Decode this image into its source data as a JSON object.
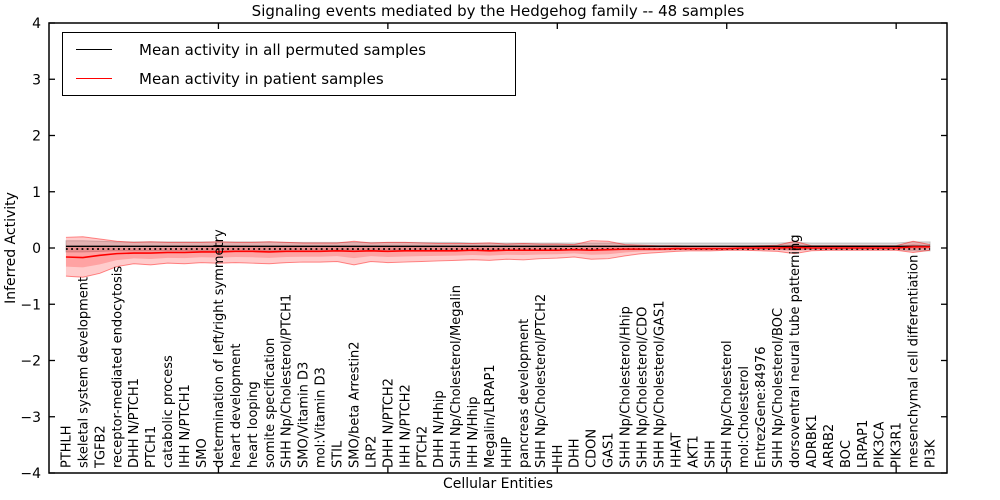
{
  "chart_data": {
    "type": "line",
    "title": "Signaling events mediated by the Hedgehog family -- 48 samples",
    "xlabel": "Cellular Entities",
    "ylabel": "Inferred Activity",
    "ylim": [
      -4,
      4
    ],
    "xlim": [
      0,
      53
    ],
    "ytick_values": [
      4,
      3,
      2,
      1,
      0,
      -1,
      -2,
      -3,
      -4
    ],
    "ytick_labels": [
      "4",
      "3",
      "2",
      "1",
      "0",
      "−1",
      "−2",
      "−3",
      "−4"
    ],
    "xtick_values": [
      10,
      20,
      30,
      40,
      50
    ],
    "grid": false,
    "legend_position": "upper left",
    "zero_line": {
      "style": "dotted",
      "color": "#000000",
      "y": 0
    },
    "categories": [
      "PTHLH",
      "skeletal system development",
      "TGFB2",
      "receptor-mediated endocytosis",
      "DHH N/PTCH1",
      "PTCH1",
      "catabolic process",
      "IHH N/PTCH1",
      "SMO",
      "determination of left/right symmetry",
      "heart development",
      "heart looping",
      "somite specification",
      "SHH Np/Cholesterol/PTCH1",
      "SMO/Vitamin D3",
      "mol:Vitamin D3",
      "STIL",
      "SMO/beta Arrestin2",
      "LRP2",
      "DHH N/PTCH2",
      "IHH N/PTCH2",
      "PTCH2",
      "DHH N/Hhip",
      "SHH Np/Cholesterol/Megalin",
      "IHH N/Hhip",
      "Megalin/LRPAP1",
      "HHIP",
      "pancreas development",
      "SHH Np/Cholesterol/PTCH2",
      "IHH",
      "DHH",
      "CDON",
      "GAS1",
      "SHH Np/Cholesterol/Hhip",
      "SHH Np/Cholesterol/CDO",
      "SHH Np/Cholesterol/GAS1",
      "HHAT",
      "AKT1",
      "SHH",
      "SHH Np/Cholesterol",
      "mol:Cholesterol",
      "EntrezGene:84976",
      "SHH Np/Cholesterol/BOC",
      "dorsoventral neural tube patterning",
      "ADRBK1",
      "ARRB2",
      "BOC",
      "LRPAP1",
      "PIK3CA",
      "PIK3R1",
      "mesenchymal cell differentiation",
      "PI3K"
    ],
    "series": [
      {
        "name": "Mean activity in all permuted samples",
        "color": "#000000",
        "values": [
          0.03,
          0.03,
          0.03,
          0.03,
          0.03,
          0.03,
          0.03,
          0.03,
          0.03,
          0.03,
          0.03,
          0.03,
          0.03,
          0.03,
          0.03,
          0.03,
          0.03,
          0.03,
          0.03,
          0.03,
          0.03,
          0.03,
          0.03,
          0.03,
          0.03,
          0.03,
          0.03,
          0.03,
          0.03,
          0.03,
          0.03,
          0.03,
          0.03,
          0.03,
          0.03,
          0.03,
          0.03,
          0.03,
          0.03,
          0.03,
          0.03,
          0.03,
          0.03,
          0.03,
          0.03,
          0.03,
          0.03,
          0.03,
          0.03,
          0.03,
          0.03,
          0.03
        ]
      },
      {
        "name": "Mean activity in patient samples",
        "color": "#ff0000",
        "values": [
          -0.16,
          -0.17,
          -0.13,
          -0.1,
          -0.09,
          -0.09,
          -0.08,
          -0.08,
          -0.07,
          -0.07,
          -0.06,
          -0.06,
          -0.07,
          -0.06,
          -0.06,
          -0.06,
          -0.05,
          -0.06,
          -0.05,
          -0.06,
          -0.05,
          -0.05,
          -0.05,
          -0.05,
          -0.04,
          -0.05,
          -0.04,
          -0.04,
          -0.04,
          -0.04,
          -0.03,
          -0.04,
          -0.03,
          -0.02,
          -0.02,
          -0.02,
          -0.01,
          -0.01,
          -0.01,
          -0.01,
          0,
          0,
          0,
          0.01,
          0,
          0,
          0,
          0,
          0,
          0,
          0.02,
          0.02
        ]
      }
    ],
    "bands": {
      "patient_band": {
        "color": "rgba(255,0,0,0.20)",
        "edge_color": "rgba(255,0,0,0.45)",
        "upper": [
          0.19,
          0.2,
          0.16,
          0.12,
          0.1,
          0.11,
          0.1,
          0.1,
          0.1,
          0.11,
          0.1,
          0.1,
          0.11,
          0.1,
          0.09,
          0.09,
          0.09,
          0.12,
          0.09,
          0.1,
          0.1,
          0.09,
          0.08,
          0.08,
          0.08,
          0.09,
          0.07,
          0.08,
          0.07,
          0.07,
          0.06,
          0.13,
          0.12,
          0.06,
          0.05,
          0.04,
          0.04,
          0.03,
          0.03,
          0.03,
          0.03,
          0.04,
          0.05,
          0.12,
          0.04,
          0.04,
          0.04,
          0.04,
          0.04,
          0.04,
          0.12,
          0.06
        ],
        "lower": [
          -0.5,
          -0.52,
          -0.45,
          -0.33,
          -0.28,
          -0.3,
          -0.27,
          -0.28,
          -0.26,
          -0.27,
          -0.26,
          -0.27,
          -0.28,
          -0.26,
          -0.25,
          -0.25,
          -0.24,
          -0.3,
          -0.24,
          -0.26,
          -0.25,
          -0.24,
          -0.23,
          -0.22,
          -0.21,
          -0.22,
          -0.2,
          -0.21,
          -0.19,
          -0.18,
          -0.16,
          -0.2,
          -0.19,
          -0.14,
          -0.1,
          -0.08,
          -0.06,
          -0.05,
          -0.05,
          -0.04,
          -0.04,
          -0.05,
          -0.06,
          -0.1,
          -0.05,
          -0.04,
          -0.04,
          -0.04,
          -0.04,
          -0.04,
          -0.08,
          -0.04
        ]
      },
      "permuted_band": {
        "color": "rgba(0,0,0,0.13)",
        "edge_color": "rgba(0,0,0,0.18)",
        "half_width": [
          0.1,
          0.1,
          0.09,
          0.08,
          0.08,
          0.08,
          0.08,
          0.08,
          0.08,
          0.08,
          0.08,
          0.08,
          0.08,
          0.07,
          0.07,
          0.07,
          0.07,
          0.07,
          0.07,
          0.07,
          0.07,
          0.07,
          0.07,
          0.07,
          0.06,
          0.06,
          0.06,
          0.06,
          0.06,
          0.06,
          0.06,
          0.06,
          0.06,
          0.06,
          0.06,
          0.06,
          0.06,
          0.06,
          0.06,
          0.06,
          0.06,
          0.06,
          0.06,
          0.07,
          0.06,
          0.06,
          0.06,
          0.06,
          0.06,
          0.06,
          0.08,
          0.08
        ]
      }
    },
    "colors": {
      "frame": "#000000",
      "background": "#ffffff",
      "patient_accent": "#ff0000",
      "permuted_accent": "#000000"
    }
  },
  "legend": {
    "entries": [
      {
        "label": "Mean activity in all permuted samples",
        "color": "#000000"
      },
      {
        "label": "Mean activity in patient samples",
        "color": "#ff0000"
      }
    ]
  }
}
